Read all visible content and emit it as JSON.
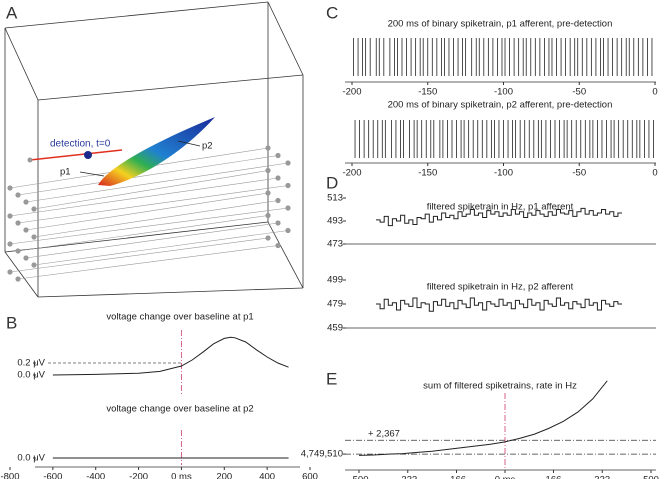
{
  "panel_labels": [
    "A",
    "B",
    "C",
    "D",
    "E"
  ],
  "panel_a": {
    "labels": [
      "detection, t=0",
      "p1",
      "p2"
    ]
  },
  "chart_data": [
    {
      "type": "line",
      "title": "voltage change over baseline at p1",
      "xlim": [
        -800,
        600
      ],
      "ylim": [
        -0.25,
        0.75
      ],
      "yticks": [
        {
          "value": 0.2,
          "label": "0.2 μV"
        },
        {
          "value": 0,
          "label": "0.0 μV"
        }
      ],
      "ref_line": 0.2,
      "vline": 0,
      "vline_color": "#d4507a",
      "color": "#222",
      "x": [
        -600,
        -400,
        -200,
        -100,
        0,
        50,
        100,
        150,
        200,
        230,
        250,
        300,
        350,
        400,
        450,
        500
      ],
      "values": [
        0.0,
        0.01,
        0.03,
        0.06,
        0.15,
        0.25,
        0.38,
        0.52,
        0.61,
        0.63,
        0.62,
        0.55,
        0.42,
        0.3,
        0.2,
        0.13
      ]
    },
    {
      "type": "line",
      "title": "voltage change over baseline at p2",
      "xlim": [
        -800,
        600
      ],
      "ylim": [
        -0.2,
        0.8
      ],
      "yticks": [
        {
          "value": 0,
          "label": "0.0 μV"
        }
      ],
      "vline": 0,
      "vline_color": "#d4507a",
      "color": "#222",
      "xticks": [
        -800,
        -600,
        -400,
        -200,
        {
          "value": 0,
          "label": "0 ms"
        },
        200,
        400,
        600
      ],
      "x": [
        -600,
        -300,
        0,
        300,
        500
      ],
      "values": [
        0,
        0,
        0,
        0,
        0
      ]
    },
    {
      "type": "spikes",
      "title": "200 ms of binary spiketrain, p1 afferent, pre-detection",
      "xlim": [
        -200,
        0
      ],
      "xticks": [
        -200,
        -150,
        -100,
        -50,
        0
      ],
      "color": "#222",
      "spikes": [
        -199,
        -196,
        -193,
        -191,
        -188,
        -184,
        -182,
        -179,
        -175,
        -172,
        -170,
        -167,
        -164,
        -161,
        -158,
        -155,
        -153,
        -150,
        -147,
        -144,
        -141,
        -139,
        -136,
        -133,
        -130,
        -127,
        -125,
        -121,
        -118,
        -116,
        -113,
        -110,
        -107,
        -104,
        -101,
        -99,
        -96,
        -93,
        -90,
        -87,
        -85,
        -82,
        -79,
        -76,
        -73,
        -70,
        -68,
        -65,
        -62,
        -59,
        -56,
        -53,
        -51,
        -48,
        -45,
        -42,
        -39,
        -36,
        -34,
        -31,
        -28,
        -25,
        -22,
        -19,
        -17,
        -14,
        -11,
        -8,
        -5,
        -2
      ]
    },
    {
      "type": "spikes",
      "title": "200 ms of binary spiketrain, p2 afferent, pre-detection",
      "xlim": [
        -200,
        0
      ],
      "xticks": [
        -200,
        -150,
        -100,
        -50,
        0
      ],
      "color": "#222",
      "spikes": [
        -198,
        -195,
        -192,
        -189,
        -186,
        -183,
        -180,
        -178,
        -174,
        -171,
        -168,
        -166,
        -162,
        -159,
        -157,
        -154,
        -151,
        -148,
        -146,
        -142,
        -140,
        -137,
        -134,
        -131,
        -128,
        -126,
        -123,
        -120,
        -117,
        -114,
        -111,
        -108,
        -106,
        -103,
        -100,
        -97,
        -94,
        -92,
        -89,
        -86,
        -83,
        -80,
        -77,
        -75,
        -72,
        -69,
        -66,
        -63,
        -60,
        -58,
        -55,
        -52,
        -49,
        -46,
        -43,
        -41,
        -38,
        -35,
        -32,
        -29,
        -27,
        -24,
        -21,
        -18,
        -15,
        -12,
        -10,
        -7,
        -4,
        -1
      ]
    },
    {
      "type": "trace",
      "title": "filtered spiketrain in Hz, p1 afferent",
      "ylim": [
        473,
        513
      ],
      "yticks": [
        473,
        493,
        513
      ],
      "color": "#222",
      "values": [
        494,
        492,
        497,
        489,
        495,
        493,
        498,
        491,
        494,
        490,
        496,
        495,
        499,
        492,
        497,
        494,
        500,
        496,
        498,
        495,
        501,
        497,
        499,
        503,
        498,
        500,
        496,
        502,
        499,
        501,
        497,
        500,
        498,
        503,
        499,
        501,
        496,
        500,
        498,
        502,
        499,
        497,
        501,
        498,
        503,
        500,
        499,
        502,
        497,
        501,
        504,
        499,
        502,
        498,
        500,
        503,
        499,
        501,
        497,
        500
      ]
    },
    {
      "type": "trace",
      "title": "filtered spiketrain in Hz, p2 afferent",
      "ylim": [
        459,
        499
      ],
      "yticks": [
        459,
        479,
        499
      ],
      "color": "#222",
      "values": [
        479,
        475,
        483,
        478,
        480,
        474,
        482,
        479,
        477,
        484,
        476,
        480,
        479,
        473,
        481,
        478,
        483,
        477,
        480,
        475,
        482,
        479,
        476,
        484,
        478,
        480,
        474,
        481,
        479,
        477,
        483,
        478,
        480,
        475,
        482,
        479,
        476,
        483,
        478,
        480,
        474,
        482,
        479,
        477,
        484,
        478,
        480,
        475,
        481,
        479,
        476,
        483,
        478,
        480,
        474,
        482,
        479,
        477,
        481,
        479
      ]
    },
    {
      "type": "line",
      "title": "sum of filtered spiketrains, rate in Hz",
      "xlim": [
        -500,
        500
      ],
      "ylim": [
        4746800,
        4763000
      ],
      "xticks": [
        -500,
        -333,
        -166,
        {
          "value": 0,
          "label": "0 ms"
        },
        166,
        333,
        500
      ],
      "yticks": [
        {
          "value": 4749510,
          "label": "4,749,510"
        }
      ],
      "threshold": {
        "text": "+ 2,367",
        "value": 2367
      },
      "vline": 0,
      "vline_color": "#d4507a",
      "color": "#222",
      "x": [
        -500,
        -450,
        -400,
        -350,
        -300,
        -250,
        -200,
        -150,
        -100,
        -50,
        0,
        50,
        100,
        150,
        200,
        250,
        300,
        350
      ],
      "values": [
        4749300,
        4749350,
        4749500,
        4749600,
        4749800,
        4750000,
        4750300,
        4750600,
        4750900,
        4751200,
        4751600,
        4752200,
        4752900,
        4753900,
        4755100,
        4756700,
        4758900,
        4762000
      ]
    }
  ]
}
